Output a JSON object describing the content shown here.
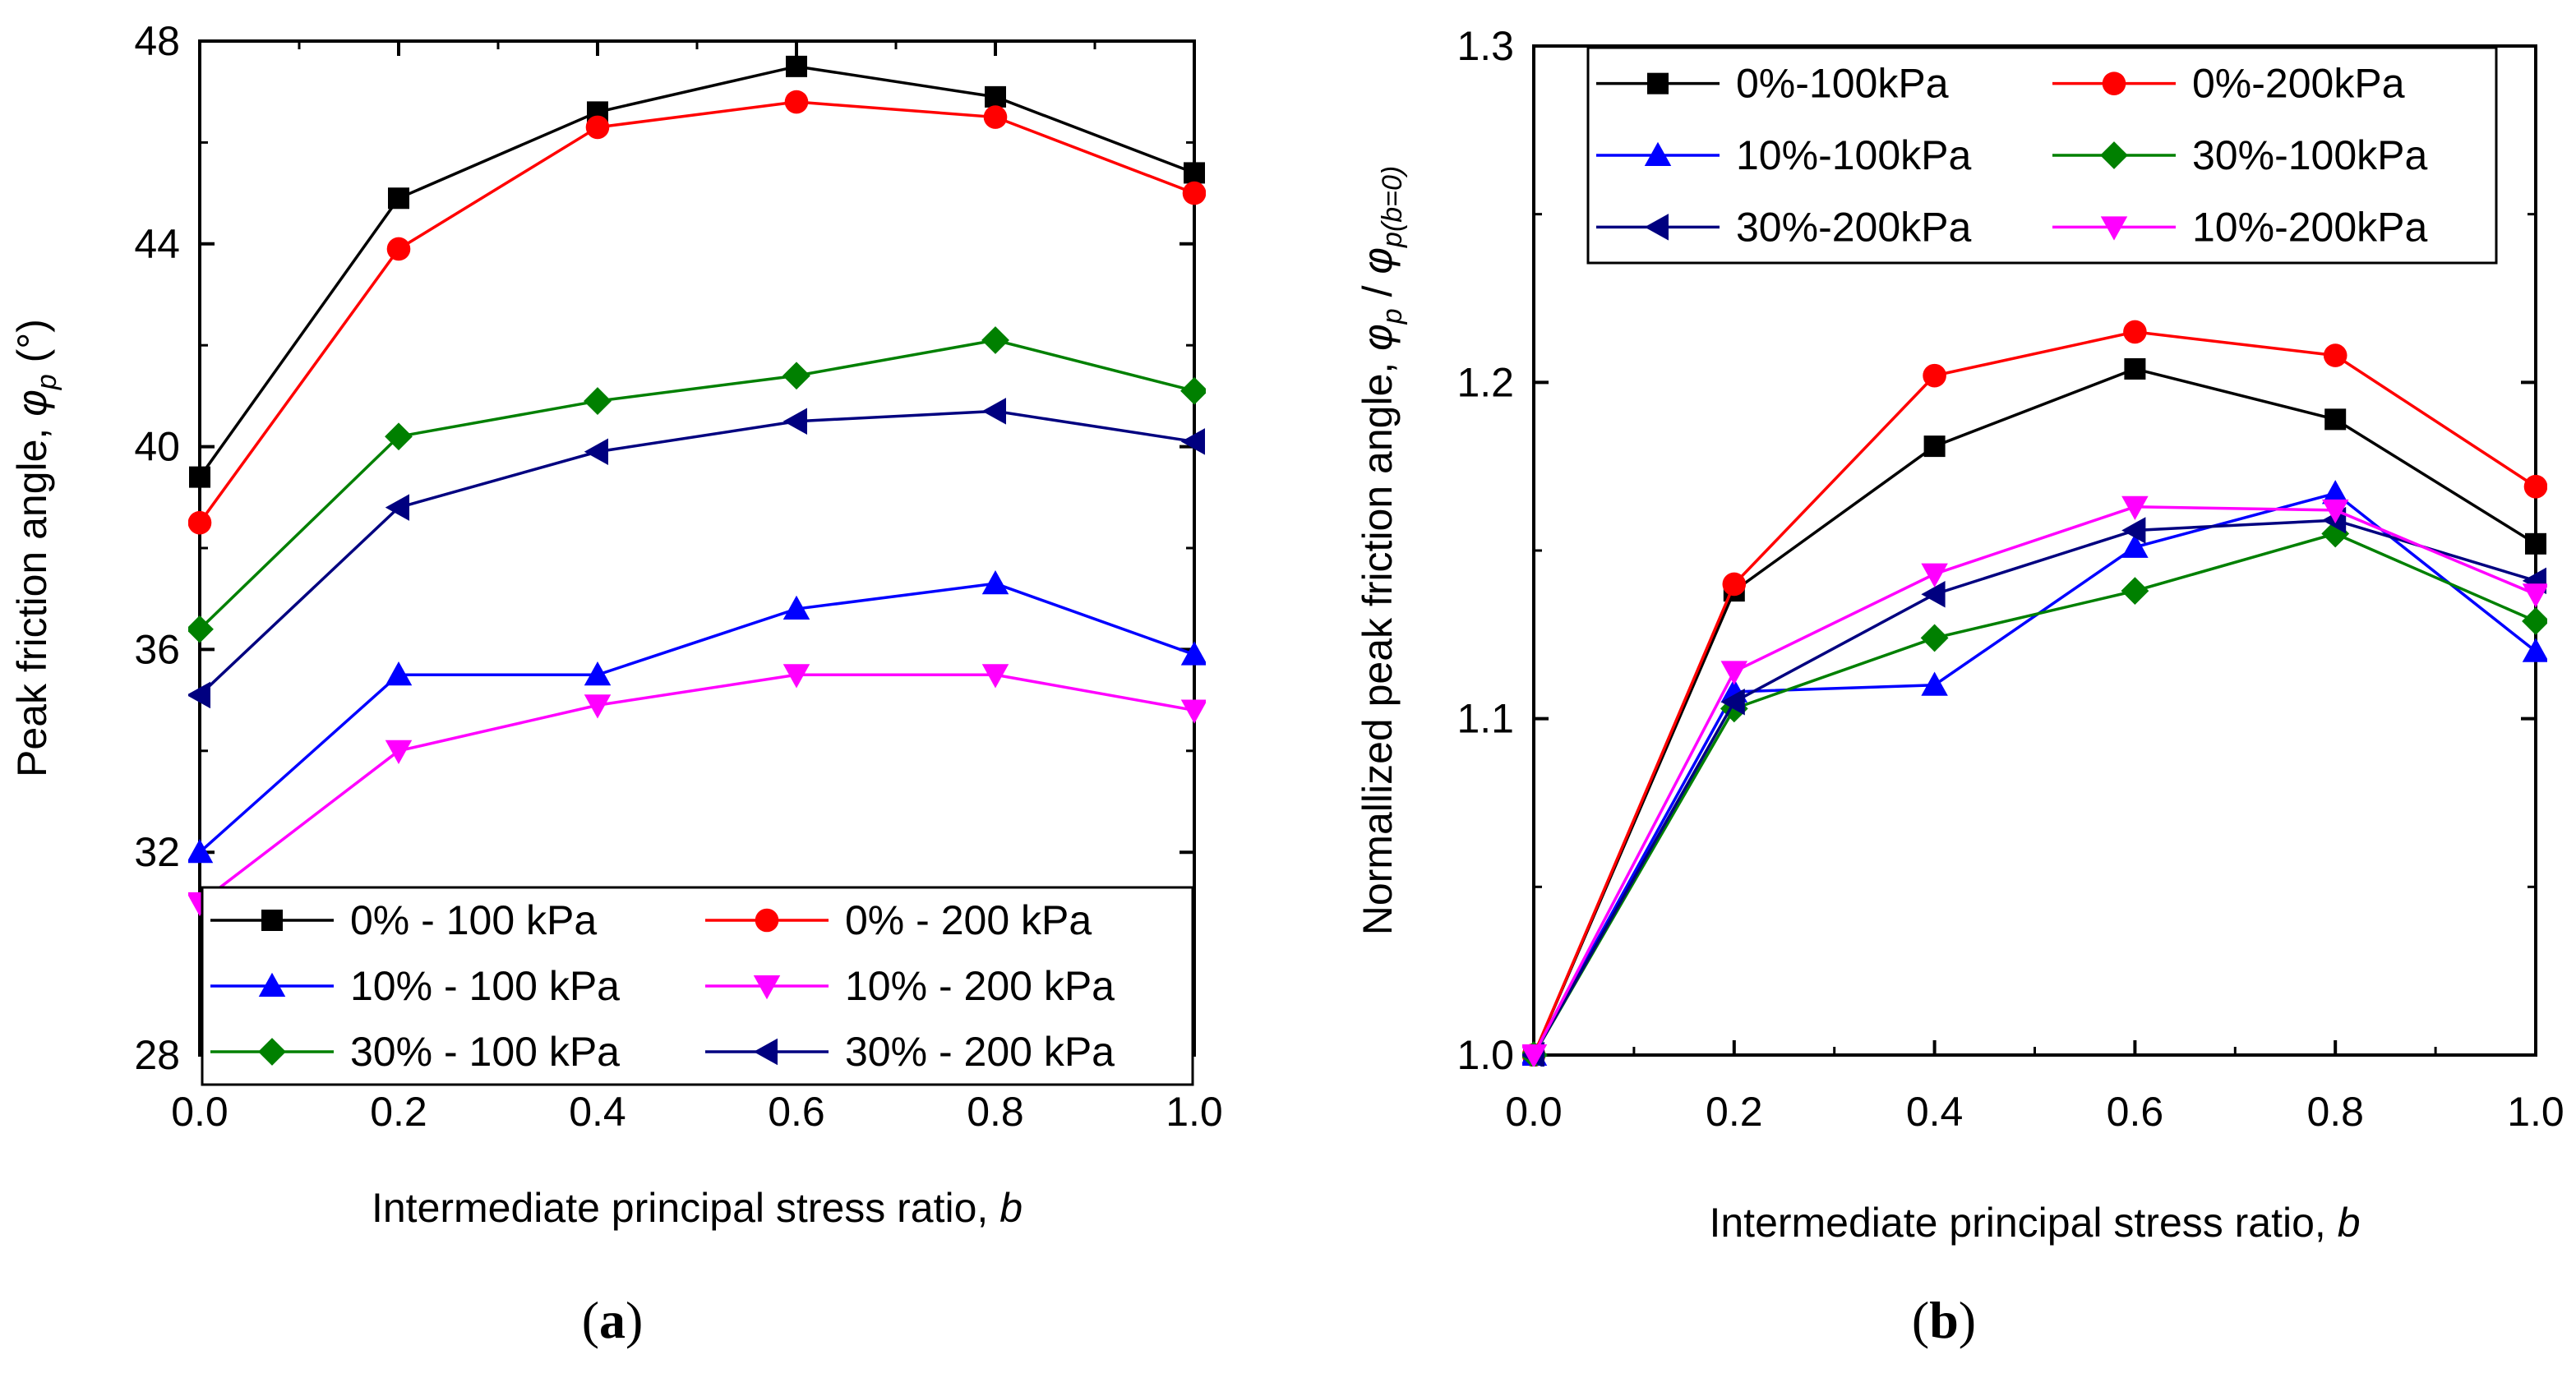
{
  "figure": {
    "caption_a": "a",
    "caption_b": "b"
  },
  "series_styles": [
    {
      "name_key": "black",
      "color": "#000000",
      "marker": "square"
    },
    {
      "name_key": "red",
      "color": "#ff0000",
      "marker": "circle"
    },
    {
      "name_key": "blue",
      "color": "#0000ff",
      "marker": "triangle-up"
    },
    {
      "name_key": "magenta",
      "color": "#ff00ff",
      "marker": "triangle-down"
    },
    {
      "name_key": "green",
      "color": "#008000",
      "marker": "diamond"
    },
    {
      "name_key": "navy",
      "color": "#000080",
      "marker": "triangle-left"
    }
  ],
  "chart_data": [
    {
      "id": "a",
      "type": "line",
      "xlabel_text": "Intermediate principal stress ratio, ",
      "xlabel_symbol": "b",
      "ylabel_text": "Peak friction angle, ",
      "ylabel_symbol": "φ",
      "ylabel_sub": "p",
      "ylabel_unit": " (°)",
      "xlim": [
        0.0,
        1.0
      ],
      "ylim": [
        28,
        48
      ],
      "xticks": [
        "0.0",
        "0.2",
        "0.4",
        "0.6",
        "0.8",
        "1.0"
      ],
      "yticks": [
        "28",
        "32",
        "36",
        "40",
        "44",
        "48"
      ],
      "x": [
        0.0,
        0.2,
        0.4,
        0.6,
        0.8,
        1.0
      ],
      "series": [
        {
          "name": "0% - 100 kPa",
          "style": 0,
          "values": [
            39.4,
            44.9,
            46.6,
            47.5,
            46.9,
            45.4
          ]
        },
        {
          "name": "0% - 200 kPa",
          "style": 1,
          "values": [
            38.5,
            43.9,
            46.3,
            46.8,
            46.5,
            45.0
          ]
        },
        {
          "name": "10% - 100 kPa",
          "style": 2,
          "values": [
            32.0,
            35.5,
            35.5,
            36.8,
            37.3,
            35.9
          ]
        },
        {
          "name": "10% - 200 kPa",
          "style": 3,
          "values": [
            31.0,
            34.0,
            34.9,
            35.5,
            35.5,
            34.8
          ]
        },
        {
          "name": "30% - 100 kPa",
          "style": 4,
          "values": [
            36.4,
            40.2,
            40.9,
            41.4,
            42.1,
            41.1
          ]
        },
        {
          "name": "30% - 200 kPa",
          "style": 5,
          "values": [
            35.1,
            38.8,
            39.9,
            40.5,
            40.7,
            40.1
          ]
        }
      ]
    },
    {
      "id": "b",
      "type": "line",
      "xlabel_text": "Intermediate principal stress ratio, ",
      "xlabel_symbol": "b",
      "ylabel_text": "Normallized peak friction angle, ",
      "ylabel_symbol": "φ",
      "ylabel_sub": "p",
      "ylabel_mid": " / ",
      "ylabel_symbol2": "φ",
      "ylabel_sub2": "p(b=0)",
      "xlim": [
        0.0,
        1.0
      ],
      "ylim": [
        1.0,
        1.3
      ],
      "xticks": [
        "0.0",
        "0.2",
        "0.4",
        "0.6",
        "0.8",
        "1.0"
      ],
      "yticks": [
        "1.0",
        "1.1",
        "1.2",
        "1.3"
      ],
      "x": [
        0.0,
        0.2,
        0.4,
        0.6,
        0.8,
        1.0
      ],
      "series": [
        {
          "name": "0%-100kPa",
          "style": 0,
          "values": [
            1.0,
            1.138,
            1.181,
            1.204,
            1.189,
            1.152
          ]
        },
        {
          "name": "0%-200kPa",
          "style": 1,
          "values": [
            1.0,
            1.14,
            1.202,
            1.215,
            1.208,
            1.169
          ]
        },
        {
          "name": "10%-100kPa",
          "style": 2,
          "values": [
            1.0,
            1.108,
            1.11,
            1.151,
            1.167,
            1.12
          ]
        },
        {
          "name": "30%-100kPa",
          "style": 4,
          "values": [
            1.0,
            1.103,
            1.124,
            1.138,
            1.155,
            1.129
          ]
        },
        {
          "name": "30%-200kPa",
          "style": 5,
          "values": [
            1.0,
            1.105,
            1.137,
            1.156,
            1.159,
            1.141
          ]
        },
        {
          "name": "10%-200kPa",
          "style": 3,
          "values": [
            1.0,
            1.114,
            1.143,
            1.163,
            1.162,
            1.137
          ]
        }
      ]
    }
  ]
}
